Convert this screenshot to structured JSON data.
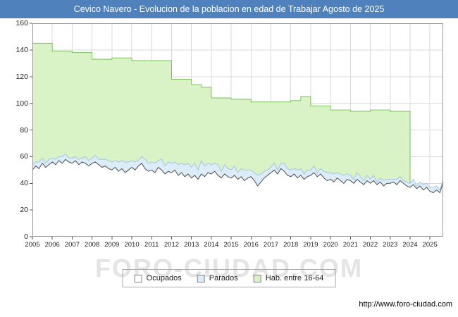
{
  "title": "Cevico Navero - Evolucion de la poblacion en edad de Trabajar Agosto de 2025",
  "watermark": "FORO-CIUDAD.COM",
  "source_url": "http://www.foro-ciudad.com",
  "colors": {
    "titlebar_bg": "#4f81bd",
    "grid": "#d9d9d9",
    "plot_border": "#9a9a9a",
    "tick": "#555555",
    "green_fill": "#d9f2c6",
    "green_stroke": "#7cc25c",
    "blue_fill": "#dcecf9",
    "blue_stroke": "#a3c6e6",
    "white_fill": "#ffffff",
    "dark_stroke": "#4d4d4d"
  },
  "legend": {
    "items": [
      {
        "label": "Ocupados",
        "fill": "#ffffff",
        "stroke": "#808080"
      },
      {
        "label": "Parados",
        "fill": "#dcecf9",
        "stroke": "#808080"
      },
      {
        "label": "Hab. entre 16-64",
        "fill": "#d9f2c6",
        "stroke": "#808080"
      }
    ]
  },
  "chart_data": {
    "type": "area",
    "title": "Cevico Navero - Evolucion de la poblacion en edad de Trabajar Agosto de 2025",
    "x_range": [
      2005,
      2025.6667
    ],
    "y_range": [
      0,
      160
    ],
    "x_ticks": [
      2005,
      2006,
      2007,
      2008,
      2009,
      2010,
      2011,
      2012,
      2013,
      2014,
      2015,
      2016,
      2017,
      2018,
      2019,
      2020,
      2021,
      2022,
      2023,
      2024,
      2025
    ],
    "y_ticks": [
      0,
      20,
      40,
      60,
      80,
      100,
      120,
      140,
      160
    ],
    "grid": true,
    "legend_position": "bottom",
    "series": [
      {
        "name": "Hab. entre 16-64",
        "type": "step-area",
        "years": [
          2005,
          2006,
          2007,
          2008,
          2009,
          2010,
          2011,
          2012,
          2013,
          2013.5,
          2014,
          2015,
          2016,
          2017,
          2018,
          2018.5,
          2019,
          2020,
          2021,
          2022,
          2023
        ],
        "values": [
          145,
          139,
          138,
          133,
          134,
          132,
          132,
          118,
          114,
          112,
          104,
          103,
          101,
          101,
          102,
          105,
          98,
          95,
          94,
          95,
          94
        ],
        "end_x": 2024,
        "fill": "#d9f2c6",
        "stroke": "#7cc25c"
      },
      {
        "name": "Parados",
        "type": "stacked-area",
        "stack_on": "Ocupados",
        "start_x": 2005,
        "dx": 0.1666667,
        "values": [
          4,
          3,
          5,
          4,
          3,
          4,
          3,
          4,
          3,
          5,
          4,
          3,
          4,
          3,
          4,
          3,
          5,
          4,
          4,
          5,
          4,
          6,
          5,
          6,
          6,
          5,
          7,
          6,
          8,
          6,
          5,
          6,
          4,
          5,
          7,
          6,
          6,
          7,
          5,
          8,
          6,
          7,
          7,
          6,
          8,
          7,
          9,
          8,
          8,
          9,
          7,
          10,
          8,
          7,
          7,
          6,
          8,
          5,
          7,
          6,
          6,
          7,
          5,
          6,
          8,
          6,
          5,
          6,
          8,
          6,
          5,
          4,
          4,
          5,
          3,
          4,
          6,
          5,
          5,
          4,
          6,
          5,
          4,
          5,
          4,
          5,
          3,
          4,
          5,
          6,
          5,
          6,
          4,
          5,
          6,
          4,
          4,
          3,
          5,
          4,
          3,
          4,
          3,
          4,
          2,
          3,
          4,
          3,
          3,
          2,
          4,
          3,
          2,
          3,
          3,
          4,
          2,
          3,
          4,
          3,
          3,
          4,
          3,
          2,
          2
        ],
        "fill": "#dcecf9",
        "stroke": "#a3c6e6"
      },
      {
        "name": "Ocupados",
        "type": "line-area",
        "start_x": 2005,
        "dx": 0.1666667,
        "values": [
          50,
          53,
          51,
          55,
          52,
          54,
          56,
          54,
          57,
          55,
          58,
          56,
          55,
          57,
          54,
          56,
          55,
          53,
          55,
          56,
          54,
          52,
          53,
          51,
          50,
          52,
          49,
          51,
          48,
          50,
          52,
          50,
          53,
          55,
          51,
          49,
          50,
          48,
          52,
          50,
          47,
          49,
          48,
          50,
          46,
          48,
          45,
          47,
          44,
          46,
          43,
          47,
          45,
          48,
          47,
          49,
          46,
          44,
          47,
          45,
          44,
          46,
          43,
          45,
          42,
          44,
          45,
          42,
          38,
          41,
          44,
          46,
          48,
          50,
          47,
          51,
          49,
          46,
          45,
          47,
          44,
          46,
          43,
          45,
          46,
          48,
          45,
          47,
          44,
          42,
          43,
          41,
          44,
          42,
          40,
          43,
          42,
          40,
          43,
          41,
          39,
          42,
          40,
          42,
          39,
          41,
          38,
          40,
          40,
          41,
          39,
          42,
          40,
          38,
          37,
          39,
          36,
          38,
          35,
          37,
          34,
          33,
          35,
          33,
          41
        ],
        "fill": "#ffffff",
        "stroke": "#4d4d4d"
      }
    ]
  }
}
